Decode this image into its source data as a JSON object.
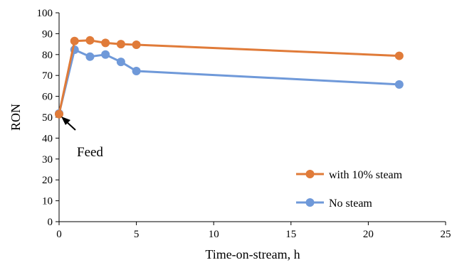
{
  "chart_data": {
    "type": "line",
    "xlabel": "Time-on-stream, h",
    "ylabel": "RON",
    "xlim": [
      0,
      25
    ],
    "ylim": [
      0,
      100
    ],
    "x_ticks": [
      0,
      5,
      10,
      15,
      20,
      25
    ],
    "y_ticks": [
      0,
      10,
      20,
      30,
      40,
      50,
      60,
      70,
      80,
      90,
      100
    ],
    "grid": false,
    "legend_position": "bottom-right",
    "series": [
      {
        "name": "with 10% steam",
        "color": "#E07B39",
        "x": [
          0,
          1,
          2,
          3,
          4,
          5,
          22
        ],
        "y": [
          51.5,
          86.5,
          86.8,
          85.6,
          85.0,
          84.7,
          79.4
        ]
      },
      {
        "name": "No steam",
        "color": "#6F99D9",
        "x": [
          0,
          1,
          2,
          3,
          4,
          5,
          22
        ],
        "y": [
          51.8,
          82.3,
          79.0,
          80.0,
          76.5,
          72.1,
          65.7
        ]
      }
    ],
    "annotations": [
      {
        "text": "Feed",
        "x": 0,
        "y": 51.5
      }
    ]
  }
}
